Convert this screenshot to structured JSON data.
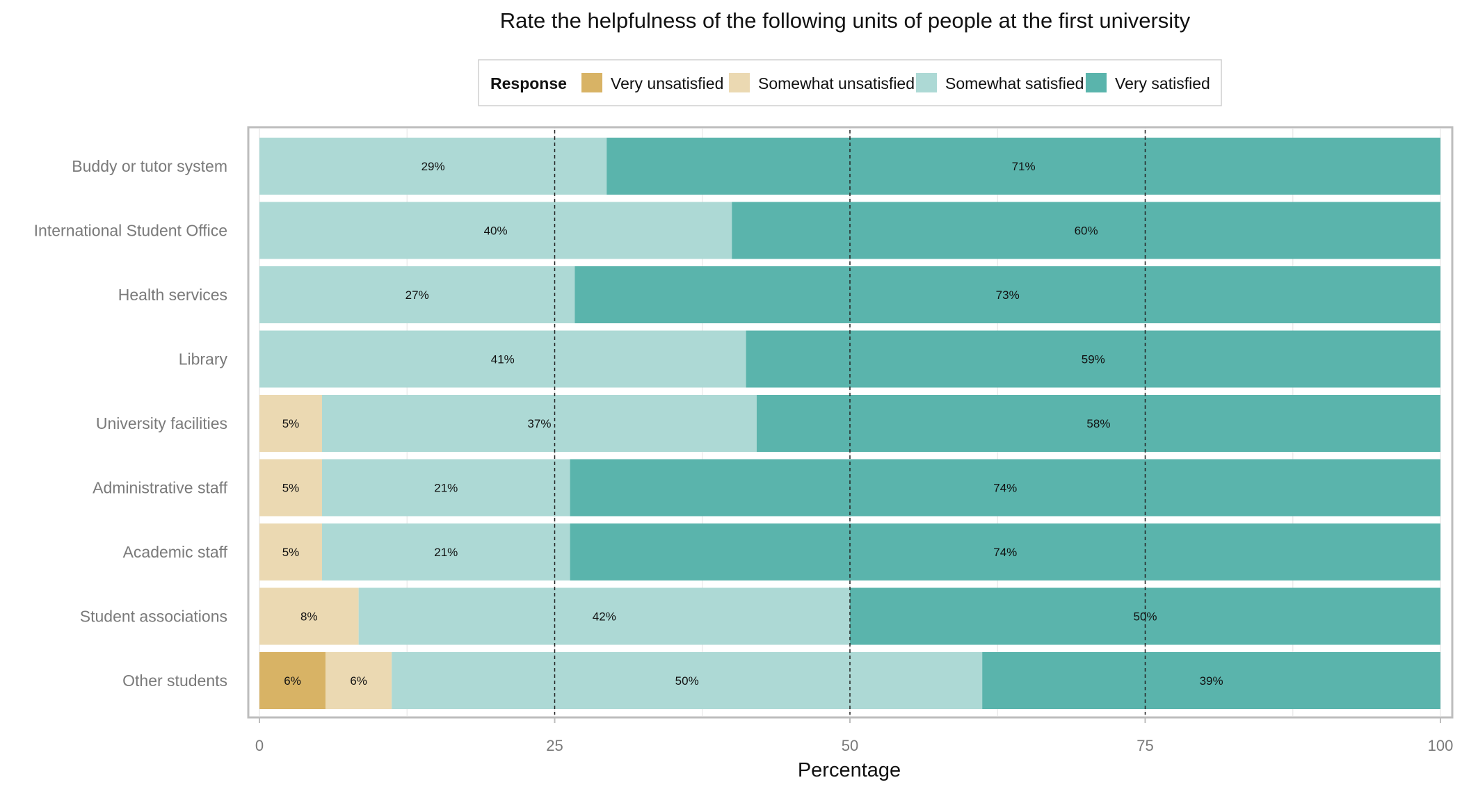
{
  "chart_data": {
    "type": "bar",
    "orientation": "horizontal",
    "stacked": true,
    "title": "Rate the helpfulness of the following units of people at the first university",
    "xlabel": "Percentage",
    "ylabel": "",
    "xlim": [
      0,
      100
    ],
    "xticks": [
      0,
      25,
      50,
      75,
      100
    ],
    "reference_lines": [
      25,
      50,
      75
    ],
    "grid": true,
    "legend": {
      "title": "Response",
      "placement": "top"
    },
    "categories": [
      "Buddy or tutor system",
      "International Student Office",
      "Health services",
      "Library",
      "University facilities",
      "Administrative staff",
      "Academic staff",
      "Student associations",
      "Other students"
    ],
    "series": [
      {
        "name": "Very unsatisfied",
        "color": "#d8b365",
        "values": [
          0,
          0,
          0,
          0,
          0,
          0,
          0,
          0,
          5.6
        ],
        "labels": [
          "",
          "",
          "",
          "",
          "",
          "",
          "",
          "",
          "6%"
        ]
      },
      {
        "name": "Somewhat unsatisfied",
        "color": "#ebd9b2",
        "values": [
          0,
          0,
          0,
          0,
          5.3,
          5.3,
          5.3,
          8.4,
          5.6
        ],
        "labels": [
          "",
          "",
          "",
          "",
          "5%",
          "5%",
          "5%",
          "8%",
          "6%"
        ]
      },
      {
        "name": "Somewhat satisfied",
        "color": "#add9d5",
        "values": [
          29.4,
          40,
          26.7,
          41.2,
          36.8,
          21,
          21,
          41.6,
          50
        ],
        "labels": [
          "29%",
          "40%",
          "27%",
          "41%",
          "37%",
          "21%",
          "21%",
          "42%",
          "50%"
        ]
      },
      {
        "name": "Very satisfied",
        "color": "#5ab4ac",
        "values": [
          70.6,
          60,
          73.3,
          58.8,
          57.9,
          73.7,
          73.7,
          50,
          38.8
        ],
        "labels": [
          "71%",
          "60%",
          "73%",
          "59%",
          "58%",
          "74%",
          "74%",
          "50%",
          "39%"
        ]
      }
    ]
  }
}
